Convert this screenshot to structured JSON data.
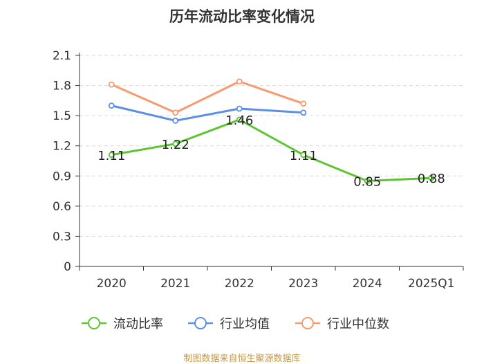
{
  "chart_data": {
    "type": "line",
    "title": "历年流动比率变化情况",
    "categories": [
      "2020",
      "2021",
      "2022",
      "2023",
      "2024",
      "2025Q1"
    ],
    "ylim": [
      0,
      2.1
    ],
    "yticks": [
      "0",
      "0.3",
      "0.6",
      "0.9",
      "1.2",
      "1.5",
      "1.8",
      "2.1"
    ],
    "grid": true,
    "legend_position": "bottom",
    "series": [
      {
        "name": "流动比率",
        "color": "#5cc531",
        "values": [
          1.11,
          1.22,
          1.46,
          1.11,
          0.85,
          0.88
        ],
        "labels": [
          "1.11",
          "1.22",
          "1.46",
          "1.11",
          "0.85",
          "0.88"
        ]
      },
      {
        "name": "行业均值",
        "color": "#5b8ee6",
        "values": [
          1.6,
          1.45,
          1.57,
          1.53,
          null,
          null
        ]
      },
      {
        "name": "行业中位数",
        "color": "#f79a6f",
        "values": [
          1.81,
          1.53,
          1.84,
          1.62,
          null,
          null
        ]
      }
    ]
  },
  "source": "制图数据来自恒生聚源数据库"
}
